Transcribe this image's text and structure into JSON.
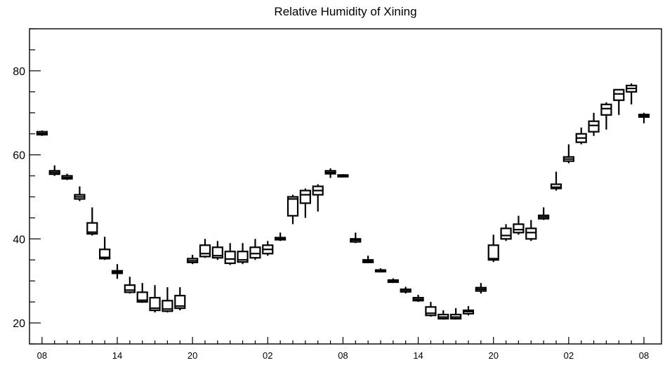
{
  "chart_data": {
    "type": "boxplot",
    "title": "Relative Humidity of Xining",
    "xlabel": "",
    "ylabel": "",
    "ylim": [
      15,
      90
    ],
    "yticks": [
      20,
      40,
      60,
      80
    ],
    "x_tick_labels": [
      "08",
      "14",
      "20",
      "02",
      "08",
      "14",
      "20",
      "02",
      "08"
    ],
    "x_tick_hours": [
      0,
      6,
      12,
      18,
      24,
      30,
      36,
      42,
      48
    ],
    "boxes": [
      {
        "hour": 0,
        "min": 64.5,
        "q1": 64.8,
        "median": 65.1,
        "q3": 65.5,
        "max": 65.8
      },
      {
        "hour": 1,
        "min": 55.0,
        "q1": 55.4,
        "median": 55.8,
        "q3": 56.2,
        "max": 57.5
      },
      {
        "hour": 2,
        "min": 54.0,
        "q1": 54.3,
        "median": 54.6,
        "q3": 55.0,
        "max": 55.5
      },
      {
        "hour": 3,
        "min": 49.0,
        "q1": 49.5,
        "median": 50.0,
        "q3": 50.5,
        "max": 52.5
      },
      {
        "hour": 4,
        "min": 40.8,
        "q1": 41.2,
        "median": 41.6,
        "q3": 43.8,
        "max": 47.5
      },
      {
        "hour": 5,
        "min": 35.0,
        "q1": 35.3,
        "median": 35.6,
        "q3": 37.5,
        "max": 40.5
      },
      {
        "hour": 6,
        "min": 30.5,
        "q1": 31.8,
        "median": 32.1,
        "q3": 32.4,
        "max": 34.0
      },
      {
        "hour": 7,
        "min": 27.0,
        "q1": 27.3,
        "median": 27.8,
        "q3": 29.0,
        "max": 31.0
      },
      {
        "hour": 8,
        "min": 24.8,
        "q1": 25.0,
        "median": 25.4,
        "q3": 27.3,
        "max": 29.5
      },
      {
        "hour": 9,
        "min": 22.5,
        "q1": 23.0,
        "median": 23.5,
        "q3": 26.0,
        "max": 29.0
      },
      {
        "hour": 10,
        "min": 22.5,
        "q1": 22.8,
        "median": 23.3,
        "q3": 25.3,
        "max": 28.5
      },
      {
        "hour": 11,
        "min": 23.0,
        "q1": 23.5,
        "median": 24.0,
        "q3": 26.5,
        "max": 28.5
      },
      {
        "hour": 12,
        "min": 34.0,
        "q1": 34.4,
        "median": 34.8,
        "q3": 35.3,
        "max": 36.2
      },
      {
        "hour": 13,
        "min": 35.5,
        "q1": 35.8,
        "median": 36.5,
        "q3": 38.5,
        "max": 40.0
      },
      {
        "hour": 14,
        "min": 35.0,
        "q1": 35.5,
        "median": 36.0,
        "q3": 38.0,
        "max": 39.5
      },
      {
        "hour": 15,
        "min": 33.8,
        "q1": 34.2,
        "median": 35.2,
        "q3": 37.0,
        "max": 39.0
      },
      {
        "hour": 16,
        "min": 34.0,
        "q1": 34.5,
        "median": 35.0,
        "q3": 37.0,
        "max": 39.0
      },
      {
        "hour": 17,
        "min": 35.0,
        "q1": 35.5,
        "median": 36.5,
        "q3": 38.0,
        "max": 40.0
      },
      {
        "hour": 18,
        "min": 36.0,
        "q1": 36.5,
        "median": 37.5,
        "q3": 38.5,
        "max": 39.5
      },
      {
        "hour": 19,
        "min": 39.5,
        "q1": 39.8,
        "median": 40.0,
        "q3": 40.3,
        "max": 41.5
      },
      {
        "hour": 20,
        "min": 43.5,
        "q1": 45.5,
        "median": 49.5,
        "q3": 50.0,
        "max": 50.5
      },
      {
        "hour": 21,
        "min": 45.0,
        "q1": 48.5,
        "median": 50.5,
        "q3": 51.5,
        "max": 52.0
      },
      {
        "hour": 22,
        "min": 46.5,
        "q1": 50.5,
        "median": 51.5,
        "q3": 52.5,
        "max": 53.0
      },
      {
        "hour": 23,
        "min": 54.5,
        "q1": 55.5,
        "median": 55.8,
        "q3": 56.2,
        "max": 56.8
      },
      {
        "hour": 24,
        "min": 54.6,
        "q1": 54.8,
        "median": 55.0,
        "q3": 55.2,
        "max": 55.4
      },
      {
        "hour": 25,
        "min": 39.0,
        "q1": 39.3,
        "median": 39.7,
        "q3": 40.0,
        "max": 41.5
      },
      {
        "hour": 26,
        "min": 34.2,
        "q1": 34.4,
        "median": 34.7,
        "q3": 35.0,
        "max": 36.0
      },
      {
        "hour": 27,
        "min": 32.0,
        "q1": 32.2,
        "median": 32.4,
        "q3": 32.6,
        "max": 33.0
      },
      {
        "hour": 28,
        "min": 29.5,
        "q1": 29.7,
        "median": 30.0,
        "q3": 30.2,
        "max": 30.6
      },
      {
        "hour": 29,
        "min": 27.0,
        "q1": 27.4,
        "median": 27.8,
        "q3": 28.0,
        "max": 28.6
      },
      {
        "hour": 30,
        "min": 25.0,
        "q1": 25.3,
        "median": 25.6,
        "q3": 26.0,
        "max": 26.7
      },
      {
        "hour": 31,
        "min": 21.5,
        "q1": 21.8,
        "median": 22.3,
        "q3": 23.8,
        "max": 25.0
      },
      {
        "hour": 32,
        "min": 20.8,
        "q1": 21.0,
        "median": 21.4,
        "q3": 22.0,
        "max": 23.0
      },
      {
        "hour": 33,
        "min": 20.8,
        "q1": 21.0,
        "median": 21.4,
        "q3": 22.0,
        "max": 23.5
      },
      {
        "hour": 34,
        "min": 21.8,
        "q1": 22.2,
        "median": 22.7,
        "q3": 23.0,
        "max": 24.0
      },
      {
        "hour": 35,
        "min": 27.0,
        "q1": 27.6,
        "median": 28.0,
        "q3": 28.4,
        "max": 29.5
      },
      {
        "hour": 36,
        "min": 34.5,
        "q1": 35.0,
        "median": 35.3,
        "q3": 38.5,
        "max": 41.0
      },
      {
        "hour": 37,
        "min": 39.5,
        "q1": 40.0,
        "median": 40.8,
        "q3": 42.5,
        "max": 43.5
      },
      {
        "hour": 38,
        "min": 41.0,
        "q1": 41.5,
        "median": 42.2,
        "q3": 43.5,
        "max": 45.5
      },
      {
        "hour": 39,
        "min": 39.5,
        "q1": 40.0,
        "median": 41.5,
        "q3": 42.5,
        "max": 44.5
      },
      {
        "hour": 40,
        "min": 44.5,
        "q1": 44.8,
        "median": 45.2,
        "q3": 45.6,
        "max": 47.5
      },
      {
        "hour": 41,
        "min": 51.5,
        "q1": 52.0,
        "median": 52.3,
        "q3": 53.0,
        "max": 56.0
      },
      {
        "hour": 42,
        "min": 58.0,
        "q1": 58.5,
        "median": 59.0,
        "q3": 59.5,
        "max": 62.5
      },
      {
        "hour": 43,
        "min": 62.5,
        "q1": 63.0,
        "median": 64.0,
        "q3": 65.0,
        "max": 66.5
      },
      {
        "hour": 44,
        "min": 64.5,
        "q1": 65.5,
        "median": 67.0,
        "q3": 68.0,
        "max": 70.0
      },
      {
        "hour": 45,
        "min": 66.0,
        "q1": 69.5,
        "median": 71.0,
        "q3": 72.0,
        "max": 72.5
      },
      {
        "hour": 46,
        "min": 69.5,
        "q1": 73.0,
        "median": 74.5,
        "q3": 75.5,
        "max": 75.5
      },
      {
        "hour": 47,
        "min": 72.0,
        "q1": 75.0,
        "median": 75.8,
        "q3": 76.5,
        "max": 77.0
      },
      {
        "hour": 48,
        "min": 67.5,
        "q1": 69.0,
        "median": 69.3,
        "q3": 69.6,
        "max": 70.0
      }
    ],
    "grid": false,
    "legend": "none"
  }
}
